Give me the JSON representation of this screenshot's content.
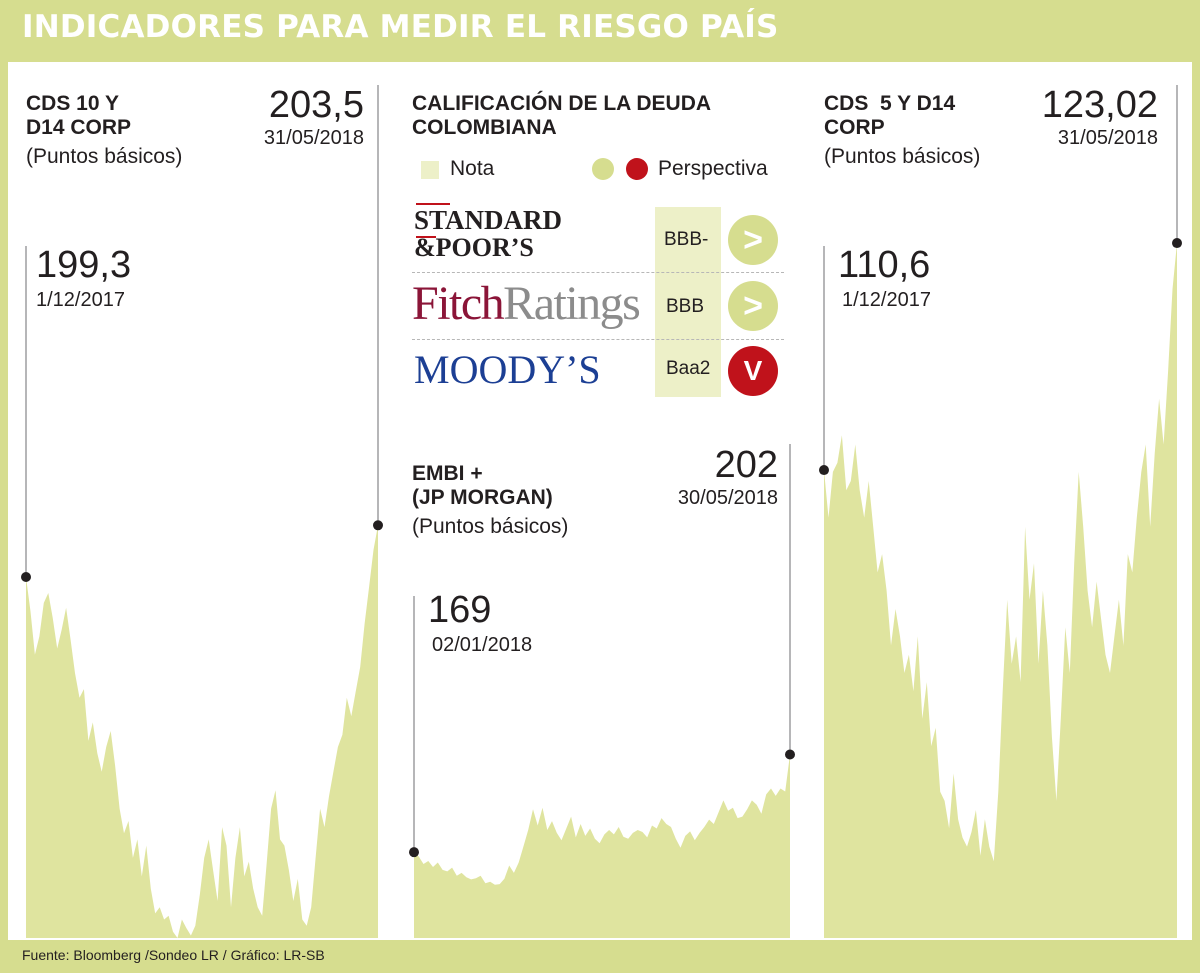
{
  "header": {
    "title": "INDICADORES PARA MEDIR EL RIESGO PAÍS"
  },
  "footer": {
    "source": "Fuente: Bloomberg /Sondeo LR / Gráfico: LR-SB"
  },
  "colors": {
    "area": "#dfe49f",
    "header_bg": "#d6dd8f",
    "pill": "#edf0c8",
    "stable": "#d6dd8f",
    "negative": "#c0121b"
  },
  "cds10": {
    "title_line1": "CDS 10 Y",
    "title_line2": "D14 CORP",
    "unit": "(Puntos básicos)",
    "end_value": "203,5",
    "end_date": "31/05/2018",
    "start_value": "199,3",
    "start_date": "1/12/2017"
  },
  "ratings": {
    "title_line1": "CALIFICACIÓN DE LA DEUDA",
    "title_line2": "COLOMBIANA",
    "legend_note": "Nota",
    "legend_perspective": "Perspectiva",
    "agencies": [
      {
        "line1": "STANDARD",
        "line2": "&POOR’S",
        "rating": "BBB-",
        "outlook_symbol": ">"
      },
      {
        "part1": "Fitch",
        "part2": "Ratings",
        "rating": "BBB",
        "outlook_symbol": ">"
      },
      {
        "name": "MOODY’S",
        "rating": "Baa2",
        "outlook_symbol": "V"
      }
    ]
  },
  "embi": {
    "title_line1": "EMBI +",
    "title_line2": "(JP MORGAN)",
    "unit": "(Puntos básicos)",
    "end_value": "202",
    "end_date": "30/05/2018",
    "start_value": "169",
    "start_date": "02/01/2018"
  },
  "cds5": {
    "title_line1": "CDS  5 Y D14",
    "title_line2": "CORP",
    "unit": "(Puntos básicos)",
    "end_value": "123,02",
    "end_date": "31/05/2018",
    "start_value": "110,6",
    "start_date": "1/12/2017"
  },
  "chart_data": [
    {
      "type": "area",
      "title": "CDS 10 Y D14 CORP",
      "xlabel": "",
      "ylabel": "(Puntos básicos)",
      "x_range": [
        "1/12/2017",
        "31/05/2018"
      ],
      "ylim": [
        170,
        220
      ],
      "values": [
        199.3,
        196.5,
        193.0,
        194.5,
        197.2,
        198.0,
        196.0,
        193.5,
        195.0,
        196.8,
        194.2,
        191.5,
        189.5,
        190.2,
        186.0,
        187.5,
        185.0,
        183.5,
        185.5,
        186.8,
        184.0,
        180.5,
        178.5,
        179.5,
        176.5,
        178.0,
        175.0,
        177.5,
        174.0,
        172.0,
        172.5,
        171.5,
        171.8,
        170.5,
        170.0,
        171.5,
        170.8,
        170.2,
        171.0,
        173.5,
        176.5,
        178.0,
        175.5,
        173.0,
        179.0,
        177.5,
        172.5,
        176.5,
        179.0,
        175.0,
        176.2,
        174.0,
        172.5,
        171.8,
        176.0,
        180.5,
        182.0,
        178.0,
        177.5,
        175.5,
        173.0,
        174.8,
        171.5,
        171.0,
        172.5,
        176.5,
        180.5,
        179.0,
        181.5,
        183.5,
        185.5,
        186.5,
        189.5,
        188.0,
        190.0,
        192.0,
        195.5,
        198.5,
        201.5,
        203.5
      ]
    },
    {
      "type": "area",
      "title": "EMBI + (JP MORGAN)",
      "xlabel": "",
      "ylabel": "(Puntos básicos)",
      "x_range": [
        "02/01/2018",
        "30/05/2018"
      ],
      "ylim": [
        140,
        240
      ],
      "values": [
        169.0,
        167.5,
        165.0,
        166.0,
        164.0,
        165.5,
        163.0,
        162.5,
        163.8,
        161.0,
        162.0,
        160.5,
        159.8,
        160.2,
        161.0,
        158.5,
        159.0,
        158.0,
        158.2,
        160.0,
        164.5,
        162.0,
        165.5,
        171.0,
        176.5,
        183.5,
        178.0,
        184.0,
        176.5,
        179.5,
        175.5,
        173.0,
        177.0,
        181.0,
        174.0,
        178.5,
        174.5,
        177.0,
        173.5,
        172.0,
        175.0,
        176.5,
        175.0,
        177.5,
        174.2,
        173.5,
        175.5,
        176.5,
        175.8,
        174.0,
        178.0,
        177.0,
        180.5,
        178.5,
        177.5,
        173.5,
        170.5,
        174.5,
        176.0,
        173.0,
        175.5,
        177.5,
        180.0,
        178.5,
        182.5,
        186.5,
        183.0,
        184.0,
        180.5,
        181.0,
        183.5,
        186.5,
        185.0,
        182.0,
        188.5,
        190.5,
        188.0,
        190.5,
        189.5,
        202.0
      ]
    },
    {
      "type": "area",
      "title": "CDS  5 Y D14 CORP",
      "xlabel": "",
      "ylabel": "(Puntos básicos)",
      "x_range": [
        "1/12/2017",
        "31/05/2018"
      ],
      "ylim": [
        85,
        128
      ],
      "values": [
        110.6,
        108.0,
        110.5,
        111.0,
        112.5,
        109.5,
        110.0,
        112.0,
        109.5,
        108.0,
        110.0,
        107.5,
        105.0,
        106.0,
        104.0,
        101.0,
        103.0,
        101.5,
        99.5,
        100.5,
        98.5,
        101.5,
        97.0,
        99.0,
        95.5,
        96.5,
        93.0,
        92.5,
        91.0,
        94.0,
        91.5,
        90.5,
        90.0,
        90.8,
        92.0,
        89.5,
        91.5,
        90.0,
        89.2,
        93.0,
        98.5,
        103.5,
        100.0,
        101.5,
        99.0,
        107.5,
        103.5,
        105.5,
        100.0,
        104.0,
        101.0,
        96.0,
        92.5,
        97.0,
        102.0,
        99.5,
        105.5,
        110.5,
        107.5,
        104.0,
        102.0,
        104.5,
        102.5,
        100.5,
        99.5,
        101.5,
        103.5,
        101.0,
        106.0,
        105.0,
        108.0,
        110.5,
        112.0,
        107.5,
        111.5,
        114.5,
        112.0,
        116.0,
        120.5,
        123.02
      ]
    }
  ]
}
